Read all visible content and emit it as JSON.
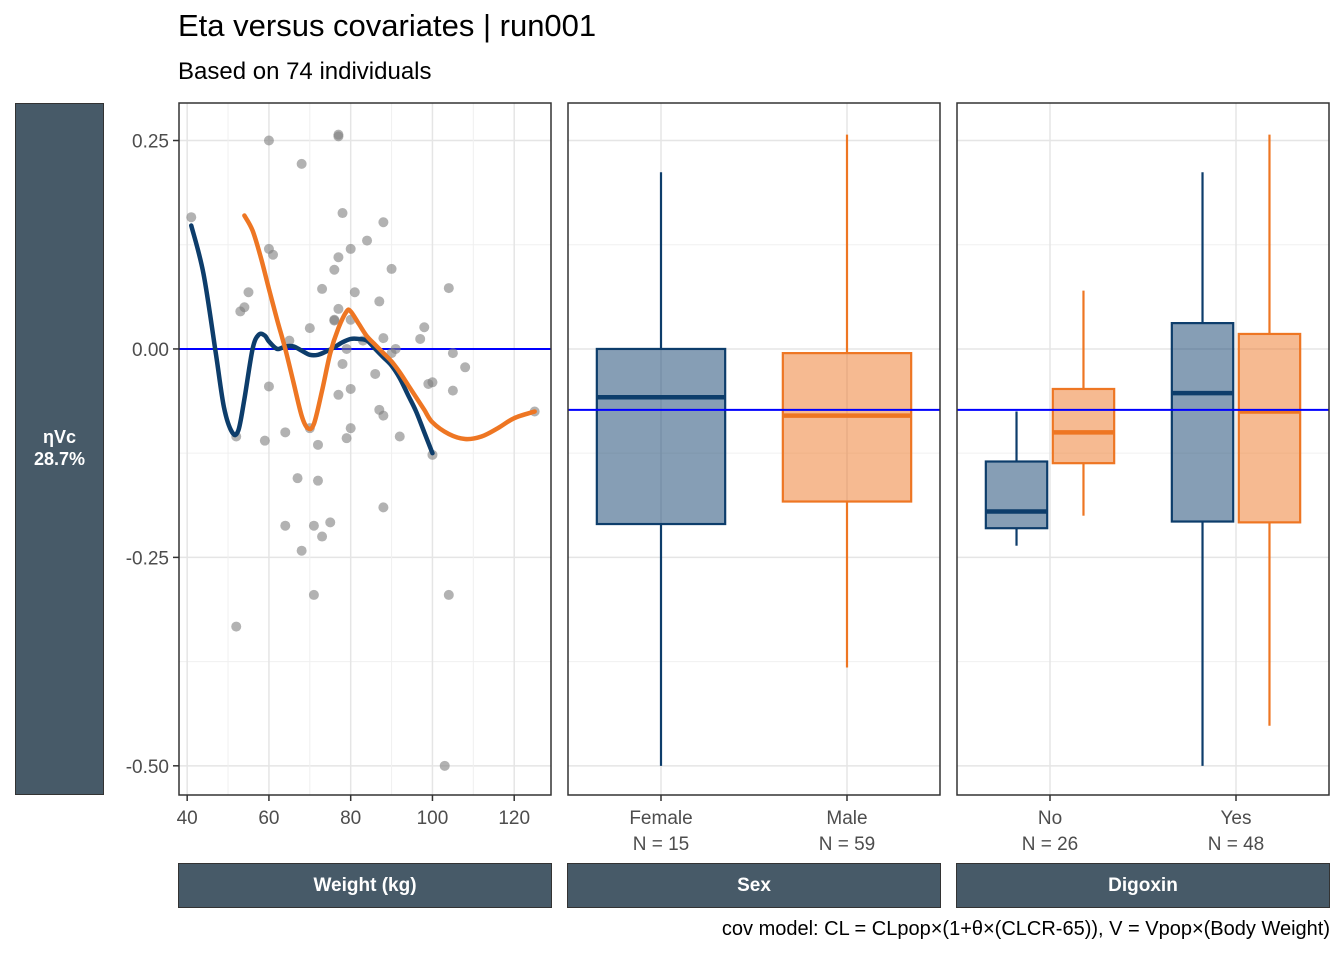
{
  "title": "Eta versus covariates | run001",
  "subtitle": "Based on 74 individuals",
  "caption": "cov model: CL = CLpop×(1+θ×(CLCR-65)), V = Vpop×(Body Weight)",
  "row_strip": {
    "eta": "ηVc",
    "shrinkage": "28.7%"
  },
  "colors": {
    "female": "#0d3d6b",
    "male": "#ee7623",
    "reference_line": "#0000ff",
    "points": "#7f7f7f",
    "strip": "#475a68"
  },
  "chart_data": [
    {
      "type": "scatter",
      "panel": "Weight (kg)",
      "xlabel": "Weight (kg)",
      "xlim": [
        38,
        129
      ],
      "ylim": [
        -0.535,
        0.295
      ],
      "x_ticks": [
        40,
        60,
        80,
        100,
        120
      ],
      "y_ticks": [
        0.25,
        0.0,
        -0.25,
        -0.5
      ],
      "y_tick_labels": [
        "0.25",
        "0.00",
        "-0.25",
        "-0.50"
      ],
      "reference_y": 0.0,
      "points": [
        [
          41,
          0.158
        ],
        [
          52,
          -0.105
        ],
        [
          52,
          -0.333
        ],
        [
          53,
          0.045
        ],
        [
          54,
          0.05
        ],
        [
          55,
          0.068
        ],
        [
          59,
          -0.11
        ],
        [
          60,
          0.25
        ],
        [
          60,
          0.12
        ],
        [
          60,
          -0.045
        ],
        [
          61,
          0.113
        ],
        [
          64,
          -0.1
        ],
        [
          64,
          -0.212
        ],
        [
          65,
          0.01
        ],
        [
          67,
          -0.155
        ],
        [
          68,
          0.222
        ],
        [
          68,
          -0.242
        ],
        [
          70,
          0.025
        ],
        [
          70,
          -0.095
        ],
        [
          71,
          -0.212
        ],
        [
          71,
          -0.295
        ],
        [
          72,
          -0.158
        ],
        [
          72,
          -0.115
        ],
        [
          73,
          -0.225
        ],
        [
          73,
          0.072
        ],
        [
          75,
          -0.208
        ],
        [
          76,
          0.035
        ],
        [
          76,
          0.034
        ],
        [
          76,
          0.095
        ],
        [
          77,
          0.257
        ],
        [
          77,
          0.255
        ],
        [
          77,
          0.11
        ],
        [
          77,
          0.048
        ],
        [
          77,
          -0.055
        ],
        [
          78,
          0.163
        ],
        [
          78,
          -0.018
        ],
        [
          79,
          0.0
        ],
        [
          79,
          -0.107
        ],
        [
          80,
          0.12
        ],
        [
          80,
          0.035
        ],
        [
          80,
          -0.095
        ],
        [
          80,
          -0.048
        ],
        [
          81,
          0.068
        ],
        [
          83,
          0.01
        ],
        [
          84,
          0.13
        ],
        [
          86,
          -0.03
        ],
        [
          87,
          0.057
        ],
        [
          87,
          -0.073
        ],
        [
          88,
          0.152
        ],
        [
          88,
          0.013
        ],
        [
          88,
          -0.19
        ],
        [
          88,
          -0.08
        ],
        [
          90,
          0.096
        ],
        [
          90,
          -0.005
        ],
        [
          91,
          0.0
        ],
        [
          92,
          -0.105
        ],
        [
          97,
          0.012
        ],
        [
          98,
          0.026
        ],
        [
          99,
          -0.042
        ],
        [
          100,
          -0.04
        ],
        [
          100,
          -0.127
        ],
        [
          103,
          -0.5
        ],
        [
          104,
          0.073
        ],
        [
          104,
          -0.295
        ],
        [
          105,
          -0.005
        ],
        [
          105,
          -0.05
        ],
        [
          108,
          -0.022
        ],
        [
          125,
          -0.075
        ]
      ],
      "series": [
        {
          "name": "Female smooth",
          "color": "#0d3d6b",
          "x": [
            41,
            44,
            47,
            49,
            51,
            52.5,
            54,
            56,
            57.5,
            59,
            60,
            62,
            64,
            66,
            68,
            70,
            72,
            74,
            76,
            78,
            80,
            82,
            84,
            86,
            88,
            90,
            92,
            94,
            96,
            98,
            100
          ],
          "y": [
            0.148,
            0.09,
            -0.005,
            -0.07,
            -0.1,
            -0.098,
            -0.06,
            0.0,
            0.017,
            0.016,
            0.009,
            0.0,
            0.003,
            0.003,
            -0.002,
            -0.007,
            -0.007,
            -0.003,
            0.002,
            0.008,
            0.012,
            0.012,
            0.01,
            0.0,
            -0.01,
            -0.02,
            -0.035,
            -0.055,
            -0.075,
            -0.1,
            -0.125
          ]
        },
        {
          "name": "Male smooth",
          "color": "#ee7623",
          "x": [
            54,
            56,
            58,
            60,
            62,
            64,
            66,
            68,
            69.5,
            71,
            73,
            75,
            77,
            79,
            80,
            82,
            84,
            86,
            88,
            90,
            92,
            94,
            96,
            98,
            100,
            104,
            108,
            112,
            116,
            120,
            125
          ],
          "y": [
            0.16,
            0.142,
            0.11,
            0.072,
            0.035,
            0.0,
            -0.04,
            -0.08,
            -0.095,
            -0.09,
            -0.05,
            -0.005,
            0.025,
            0.045,
            0.045,
            0.03,
            0.015,
            0.005,
            -0.005,
            -0.015,
            -0.028,
            -0.043,
            -0.058,
            -0.073,
            -0.088,
            -0.102,
            -0.108,
            -0.105,
            -0.095,
            -0.083,
            -0.075
          ]
        }
      ]
    },
    {
      "type": "box",
      "panel": "Sex",
      "xlabel": "Sex",
      "ylim": [
        -0.535,
        0.295
      ],
      "reference_y": -0.073,
      "categories": [
        {
          "label": "Female",
          "n_label": "N = 15",
          "group": "Female"
        },
        {
          "label": "Male",
          "n_label": "N = 59",
          "group": "Male"
        }
      ],
      "boxes": [
        {
          "category": "Female",
          "group": "Female",
          "min": -0.5,
          "q1": -0.21,
          "median": -0.058,
          "q3": 0.0,
          "max": 0.212
        },
        {
          "category": "Male",
          "group": "Male",
          "min": -0.382,
          "q1": -0.183,
          "median": -0.08,
          "q3": -0.005,
          "max": 0.257
        }
      ]
    },
    {
      "type": "box",
      "panel": "Digoxin",
      "xlabel": "Digoxin",
      "ylim": [
        -0.535,
        0.295
      ],
      "reference_y": -0.073,
      "categories": [
        {
          "label": "No",
          "n_label": "N = 26"
        },
        {
          "label": "Yes",
          "n_label": "N = 48"
        }
      ],
      "boxes": [
        {
          "category": "No",
          "group": "Female",
          "min": -0.236,
          "q1": -0.215,
          "median": -0.195,
          "q3": -0.135,
          "max": -0.075
        },
        {
          "category": "No",
          "group": "Male",
          "min": -0.2,
          "q1": -0.137,
          "median": -0.1,
          "q3": -0.048,
          "max": 0.07
        },
        {
          "category": "Yes",
          "group": "Female",
          "min": -0.5,
          "q1": -0.207,
          "median": -0.053,
          "q3": 0.031,
          "max": 0.212
        },
        {
          "category": "Yes",
          "group": "Male",
          "min": -0.452,
          "q1": -0.208,
          "median": -0.075,
          "q3": 0.018,
          "max": 0.257
        }
      ]
    }
  ]
}
